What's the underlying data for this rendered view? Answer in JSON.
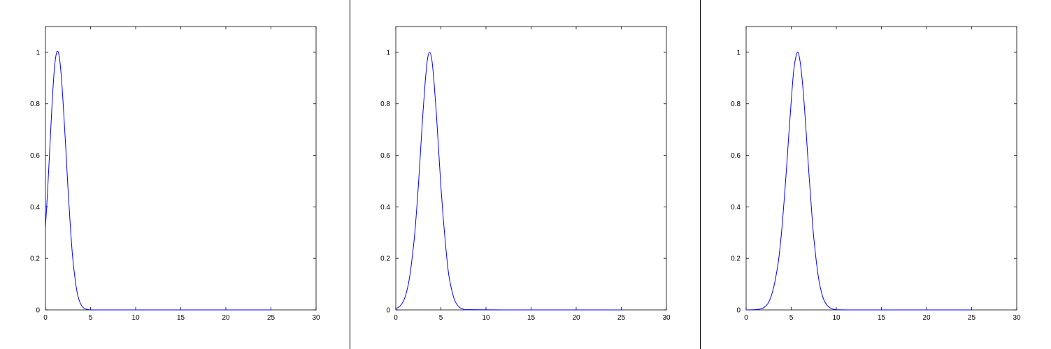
{
  "chart_data": [
    {
      "type": "line",
      "title": "",
      "xlabel": "",
      "ylabel": "",
      "xlim": [
        0,
        30
      ],
      "ylim": [
        0,
        1.1
      ],
      "xticks": [
        0,
        5,
        10,
        15,
        20,
        25,
        30
      ],
      "yticks": [
        0,
        0.2,
        0.4,
        0.6,
        0.8,
        1
      ],
      "xtick_labels": [
        "0",
        "5",
        "10",
        "15",
        "20",
        "25",
        "30"
      ],
      "ytick_labels": [
        "0",
        "0.2",
        "0.4",
        "0.6",
        "0.8",
        "1"
      ],
      "grid": false,
      "series": [
        {
          "color": "#0000ff",
          "x": [
            0,
            0.25,
            0.5,
            0.75,
            1.0,
            1.25,
            1.5,
            1.75,
            2.0,
            2.25,
            2.5,
            2.75,
            3.0,
            3.25,
            3.5,
            3.75,
            4.0,
            4.25,
            4.5,
            4.75,
            5.0,
            5.5,
            6.0,
            8.0,
            12.0,
            16.0,
            20.0,
            25.0
          ],
          "y": [
            0.32,
            0.47,
            0.64,
            0.81,
            0.94,
            1.0,
            0.99,
            0.91,
            0.78,
            0.63,
            0.47,
            0.33,
            0.21,
            0.13,
            0.07,
            0.036,
            0.017,
            0.007,
            0.003,
            0.001,
            0.0004,
            0.0,
            0.0,
            0.0,
            0.0,
            0.0,
            0.0,
            0.0
          ]
        }
      ]
    },
    {
      "type": "line",
      "title": "",
      "xlabel": "",
      "ylabel": "",
      "xlim": [
        0,
        30
      ],
      "ylim": [
        0,
        1.1
      ],
      "xticks": [
        0,
        5,
        10,
        15,
        20,
        25,
        30
      ],
      "yticks": [
        0,
        0.2,
        0.4,
        0.6,
        0.8,
        1
      ],
      "xtick_labels": [
        "0",
        "5",
        "10",
        "15",
        "20",
        "25",
        "30"
      ],
      "ytick_labels": [
        "0",
        "0.2",
        "0.4",
        "0.6",
        "0.8",
        "1"
      ],
      "grid": false,
      "series": [
        {
          "color": "#0000ff",
          "x": [
            0,
            0.5,
            1.0,
            1.5,
            2.0,
            2.25,
            2.5,
            2.75,
            3.0,
            3.25,
            3.5,
            3.75,
            4.0,
            4.25,
            4.5,
            4.75,
            5.0,
            5.25,
            5.5,
            5.75,
            6.0,
            6.5,
            7.0,
            7.5,
            8.0,
            12.0,
            16.0,
            20.0,
            25.0
          ],
          "y": [
            0.005,
            0.016,
            0.047,
            0.12,
            0.26,
            0.36,
            0.48,
            0.62,
            0.76,
            0.88,
            0.97,
            1.0,
            0.97,
            0.88,
            0.76,
            0.62,
            0.48,
            0.36,
            0.26,
            0.17,
            0.11,
            0.04,
            0.012,
            0.003,
            0.001,
            0.0,
            0.0,
            0.0,
            0.0
          ]
        }
      ]
    },
    {
      "type": "line",
      "title": "",
      "xlabel": "",
      "ylabel": "",
      "xlim": [
        0,
        30
      ],
      "ylim": [
        0,
        1.1
      ],
      "xticks": [
        0,
        5,
        10,
        15,
        20,
        25,
        30
      ],
      "yticks": [
        0,
        0.2,
        0.4,
        0.6,
        0.8,
        1
      ],
      "xtick_labels": [
        "0",
        "5",
        "10",
        "15",
        "20",
        "25",
        "30"
      ],
      "ytick_labels": [
        "0",
        "0.2",
        "0.4",
        "0.6",
        "0.8",
        "1"
      ],
      "grid": false,
      "series": [
        {
          "color": "#0000ff",
          "x": [
            0,
            1.0,
            1.5,
            2.0,
            2.5,
            3.0,
            3.5,
            3.75,
            4.0,
            4.25,
            4.5,
            4.75,
            5.0,
            5.25,
            5.5,
            5.75,
            6.0,
            6.25,
            6.5,
            6.75,
            7.0,
            7.25,
            7.5,
            8.0,
            8.5,
            9.0,
            9.5,
            10.0,
            12.0,
            16.0,
            20.0,
            25.0
          ],
          "y": [
            0.0,
            0.001,
            0.003,
            0.01,
            0.03,
            0.08,
            0.17,
            0.24,
            0.33,
            0.44,
            0.56,
            0.69,
            0.81,
            0.92,
            0.98,
            1.0,
            0.96,
            0.88,
            0.77,
            0.64,
            0.51,
            0.39,
            0.28,
            0.13,
            0.05,
            0.017,
            0.005,
            0.001,
            0.0,
            0.0,
            0.0,
            0.0
          ]
        }
      ]
    }
  ]
}
